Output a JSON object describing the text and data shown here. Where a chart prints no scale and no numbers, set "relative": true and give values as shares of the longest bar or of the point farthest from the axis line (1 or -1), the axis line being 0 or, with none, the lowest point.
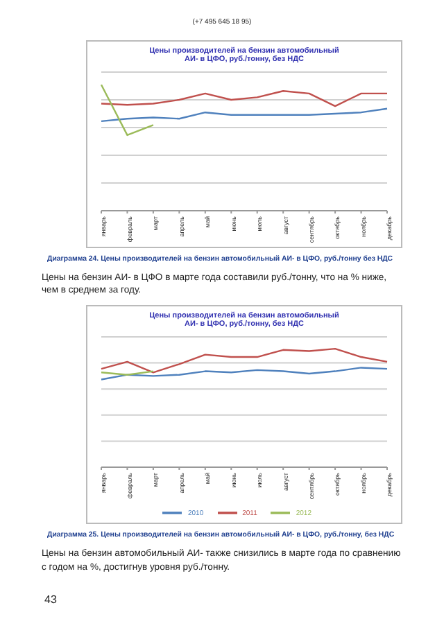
{
  "chart_data": [
    {
      "type": "line",
      "title": "Цены производителей на бензин автомобильный АИ- в ЦФО, руб./тонну, без НДС",
      "relative": true,
      "grid": "y",
      "categories": [
        "январь",
        "февраль",
        "март",
        "апрель",
        "май",
        "июнь",
        "июль",
        "август",
        "сентябрь",
        "октябрь",
        "ноябрь",
        "декабрь"
      ],
      "series": [
        {
          "color": "#4f81bd",
          "values": [
            0.71,
            0.73,
            0.74,
            0.73,
            0.78,
            0.76,
            0.76,
            0.76,
            0.76,
            0.77,
            0.78,
            0.81
          ]
        },
        {
          "color": "#c0504d",
          "values": [
            0.85,
            0.84,
            0.85,
            0.88,
            0.93,
            0.88,
            0.9,
            0.95,
            0.93,
            0.83,
            0.93,
            0.93
          ]
        },
        {
          "color": "#9bbb59",
          "values": [
            1,
            0.6,
            0.68,
            null,
            null,
            null,
            null,
            null,
            null,
            null,
            null,
            null
          ]
        }
      ],
      "annotations": [
        "(+7 495 645 18 95)",
        "Диаграмма 24. Цены производителей на бензин автомобильный АИ- в ЦФО, руб./тонну без НДС",
        "Цены на бензин АИ- в ЦФО в марте года составили руб./тонну, что на % ниже, чем в среднем за году."
      ]
    },
    {
      "type": "line",
      "title": "Цены производителей на бензин автомобильный АИ- в ЦФО, руб./тонну, без НДС",
      "relative": true,
      "grid": "y",
      "legend": "bottom",
      "categories": [
        "январь",
        "февраль",
        "март",
        "апрель",
        "май",
        "июнь",
        "июль",
        "август",
        "сентябрь",
        "октябрь",
        "ноябрь",
        "декабрь"
      ],
      "series": [
        {
          "name": "2010",
          "color": "#4f81bd",
          "values": [
            0.74,
            0.78,
            0.77,
            0.78,
            0.81,
            0.8,
            0.82,
            0.81,
            0.79,
            0.81,
            0.84,
            0.83
          ]
        },
        {
          "name": "2011",
          "color": "#c0504d",
          "values": [
            0.83,
            0.89,
            0.8,
            0.87,
            0.95,
            0.93,
            0.93,
            0.99,
            0.98,
            1,
            0.93,
            0.89
          ]
        },
        {
          "name": "2012",
          "color": "#9bbb59",
          "values": [
            0.8,
            0.78,
            0.81,
            null,
            null,
            null,
            null,
            null,
            null,
            null,
            null,
            null
          ]
        }
      ],
      "annotations": [
        "Диаграмма 25. Цены производителей на бензин автомобильный АИ- в ЦФО, руб./тонну, без НДС",
        "Цены на бензин автомобильный АИ- также снизились в марте года по сравнению с годом на %, достигнув уровня руб./тонну.",
        "43"
      ]
    }
  ]
}
